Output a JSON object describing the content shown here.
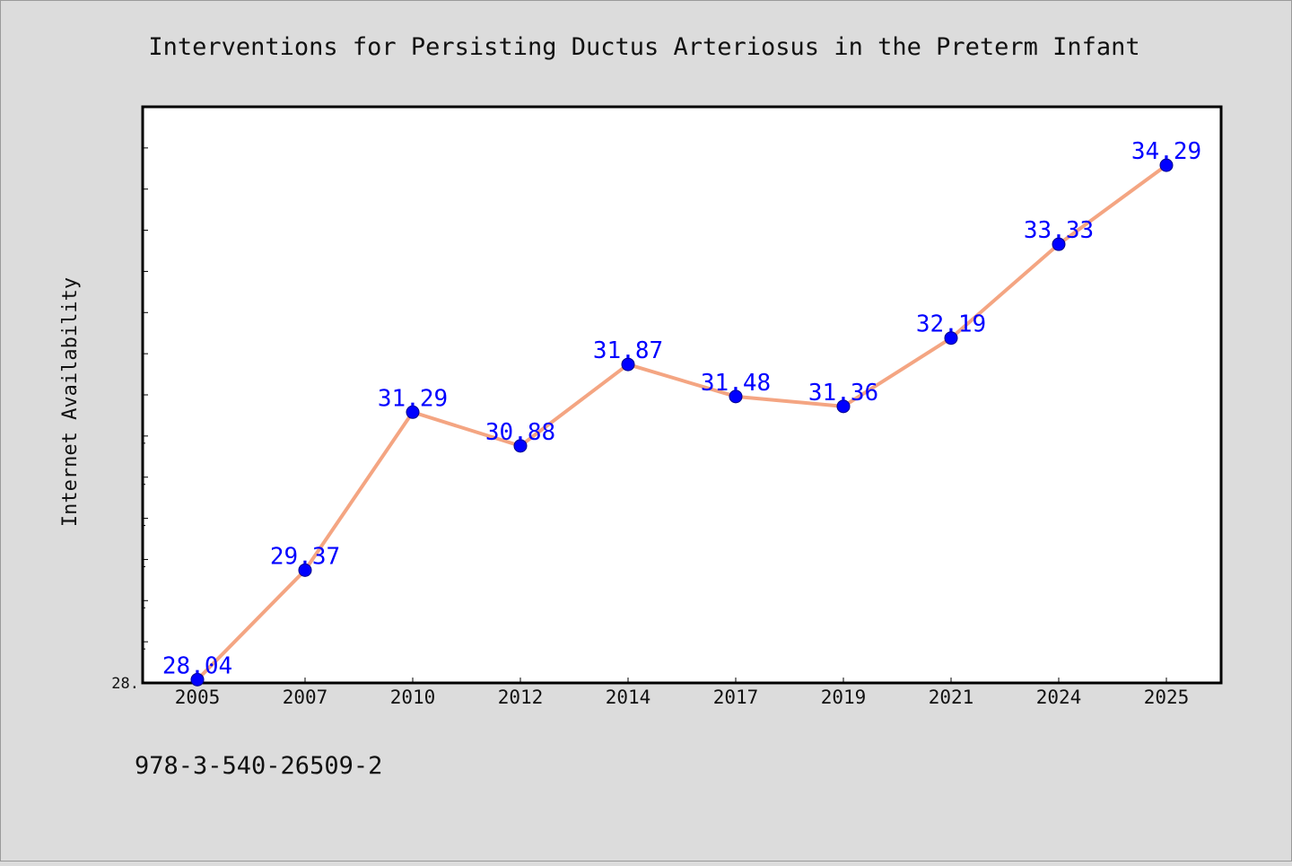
{
  "chart_data": {
    "type": "line",
    "title": "Interventions for Persisting Ductus Arteriosus in the Preterm Infant",
    "xlabel": "",
    "ylabel": "Internet Availability",
    "categories": [
      "2005",
      "2007",
      "2010",
      "2012",
      "2014",
      "2017",
      "2019",
      "2021",
      "2024",
      "2025"
    ],
    "series": [
      {
        "name": "",
        "values": [
          28.04,
          29.37,
          31.29,
          30.88,
          31.87,
          31.48,
          31.36,
          32.19,
          33.33,
          34.29
        ],
        "labels": [
          "28.04",
          "29.37",
          "31.29",
          "30.88",
          "31.87",
          "31.48",
          "31.36",
          "32.19",
          "33.33",
          "34.29"
        ]
      }
    ],
    "ylim": [
      28.0,
      35.0
    ],
    "y_tick_labels": [
      "28."
    ],
    "grid": false,
    "legend": "none",
    "colors": {
      "line": "#f4a582",
      "marker": "#0000ff",
      "data_label": "#0000ff",
      "plot_background": "#ffffff",
      "figure_background": "#dcdcdc",
      "axis": "#000000"
    }
  },
  "footer_text": "978-3-540-26509-2"
}
